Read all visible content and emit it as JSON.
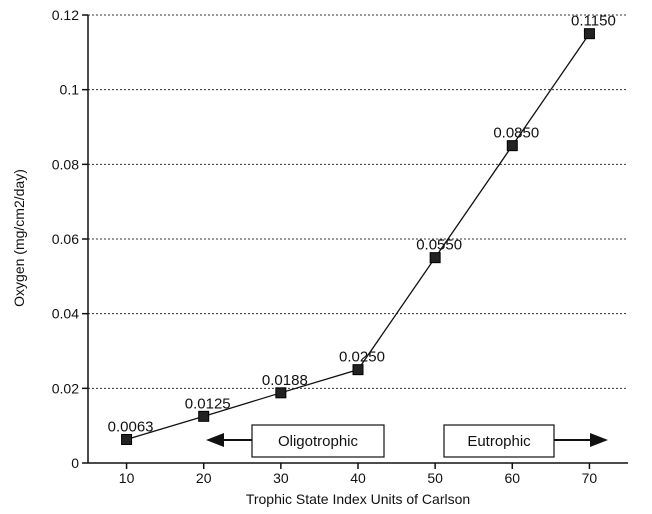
{
  "chart_data": {
    "type": "line",
    "title": "",
    "xlabel": "Trophic State Index Units of Carlson",
    "ylabel": "Oxygen (mg/cm2/day)",
    "xlim": [
      5,
      75
    ],
    "ylim": [
      0,
      0.12
    ],
    "x_ticks": [
      10,
      20,
      30,
      40,
      50,
      60,
      70
    ],
    "x_tick_labels": [
      "10",
      "20",
      "30",
      "40",
      "50",
      "60",
      "70"
    ],
    "y_ticks": [
      0,
      0.02,
      0.04,
      0.06,
      0.08,
      0.1,
      0.12
    ],
    "y_tick_labels": [
      "0",
      "0.02",
      "0.04",
      "0.06",
      "0.08",
      "0.1",
      "0.12"
    ],
    "grid": "horizontal dotted",
    "series": [
      {
        "x": [
          10,
          20,
          30,
          40,
          50,
          60,
          70
        ],
        "y": [
          0.0063,
          0.0125,
          0.0188,
          0.025,
          0.055,
          0.085,
          0.115
        ],
        "labels": [
          "0.0063",
          "0.0125",
          "0.0188",
          "0.0250",
          "0.0550",
          "0.0850",
          "0.1150"
        ]
      }
    ],
    "annotations": [
      {
        "text": "Oligotrophic",
        "arrow": "left"
      },
      {
        "text": "Eutrophic",
        "arrow": "right"
      }
    ]
  }
}
